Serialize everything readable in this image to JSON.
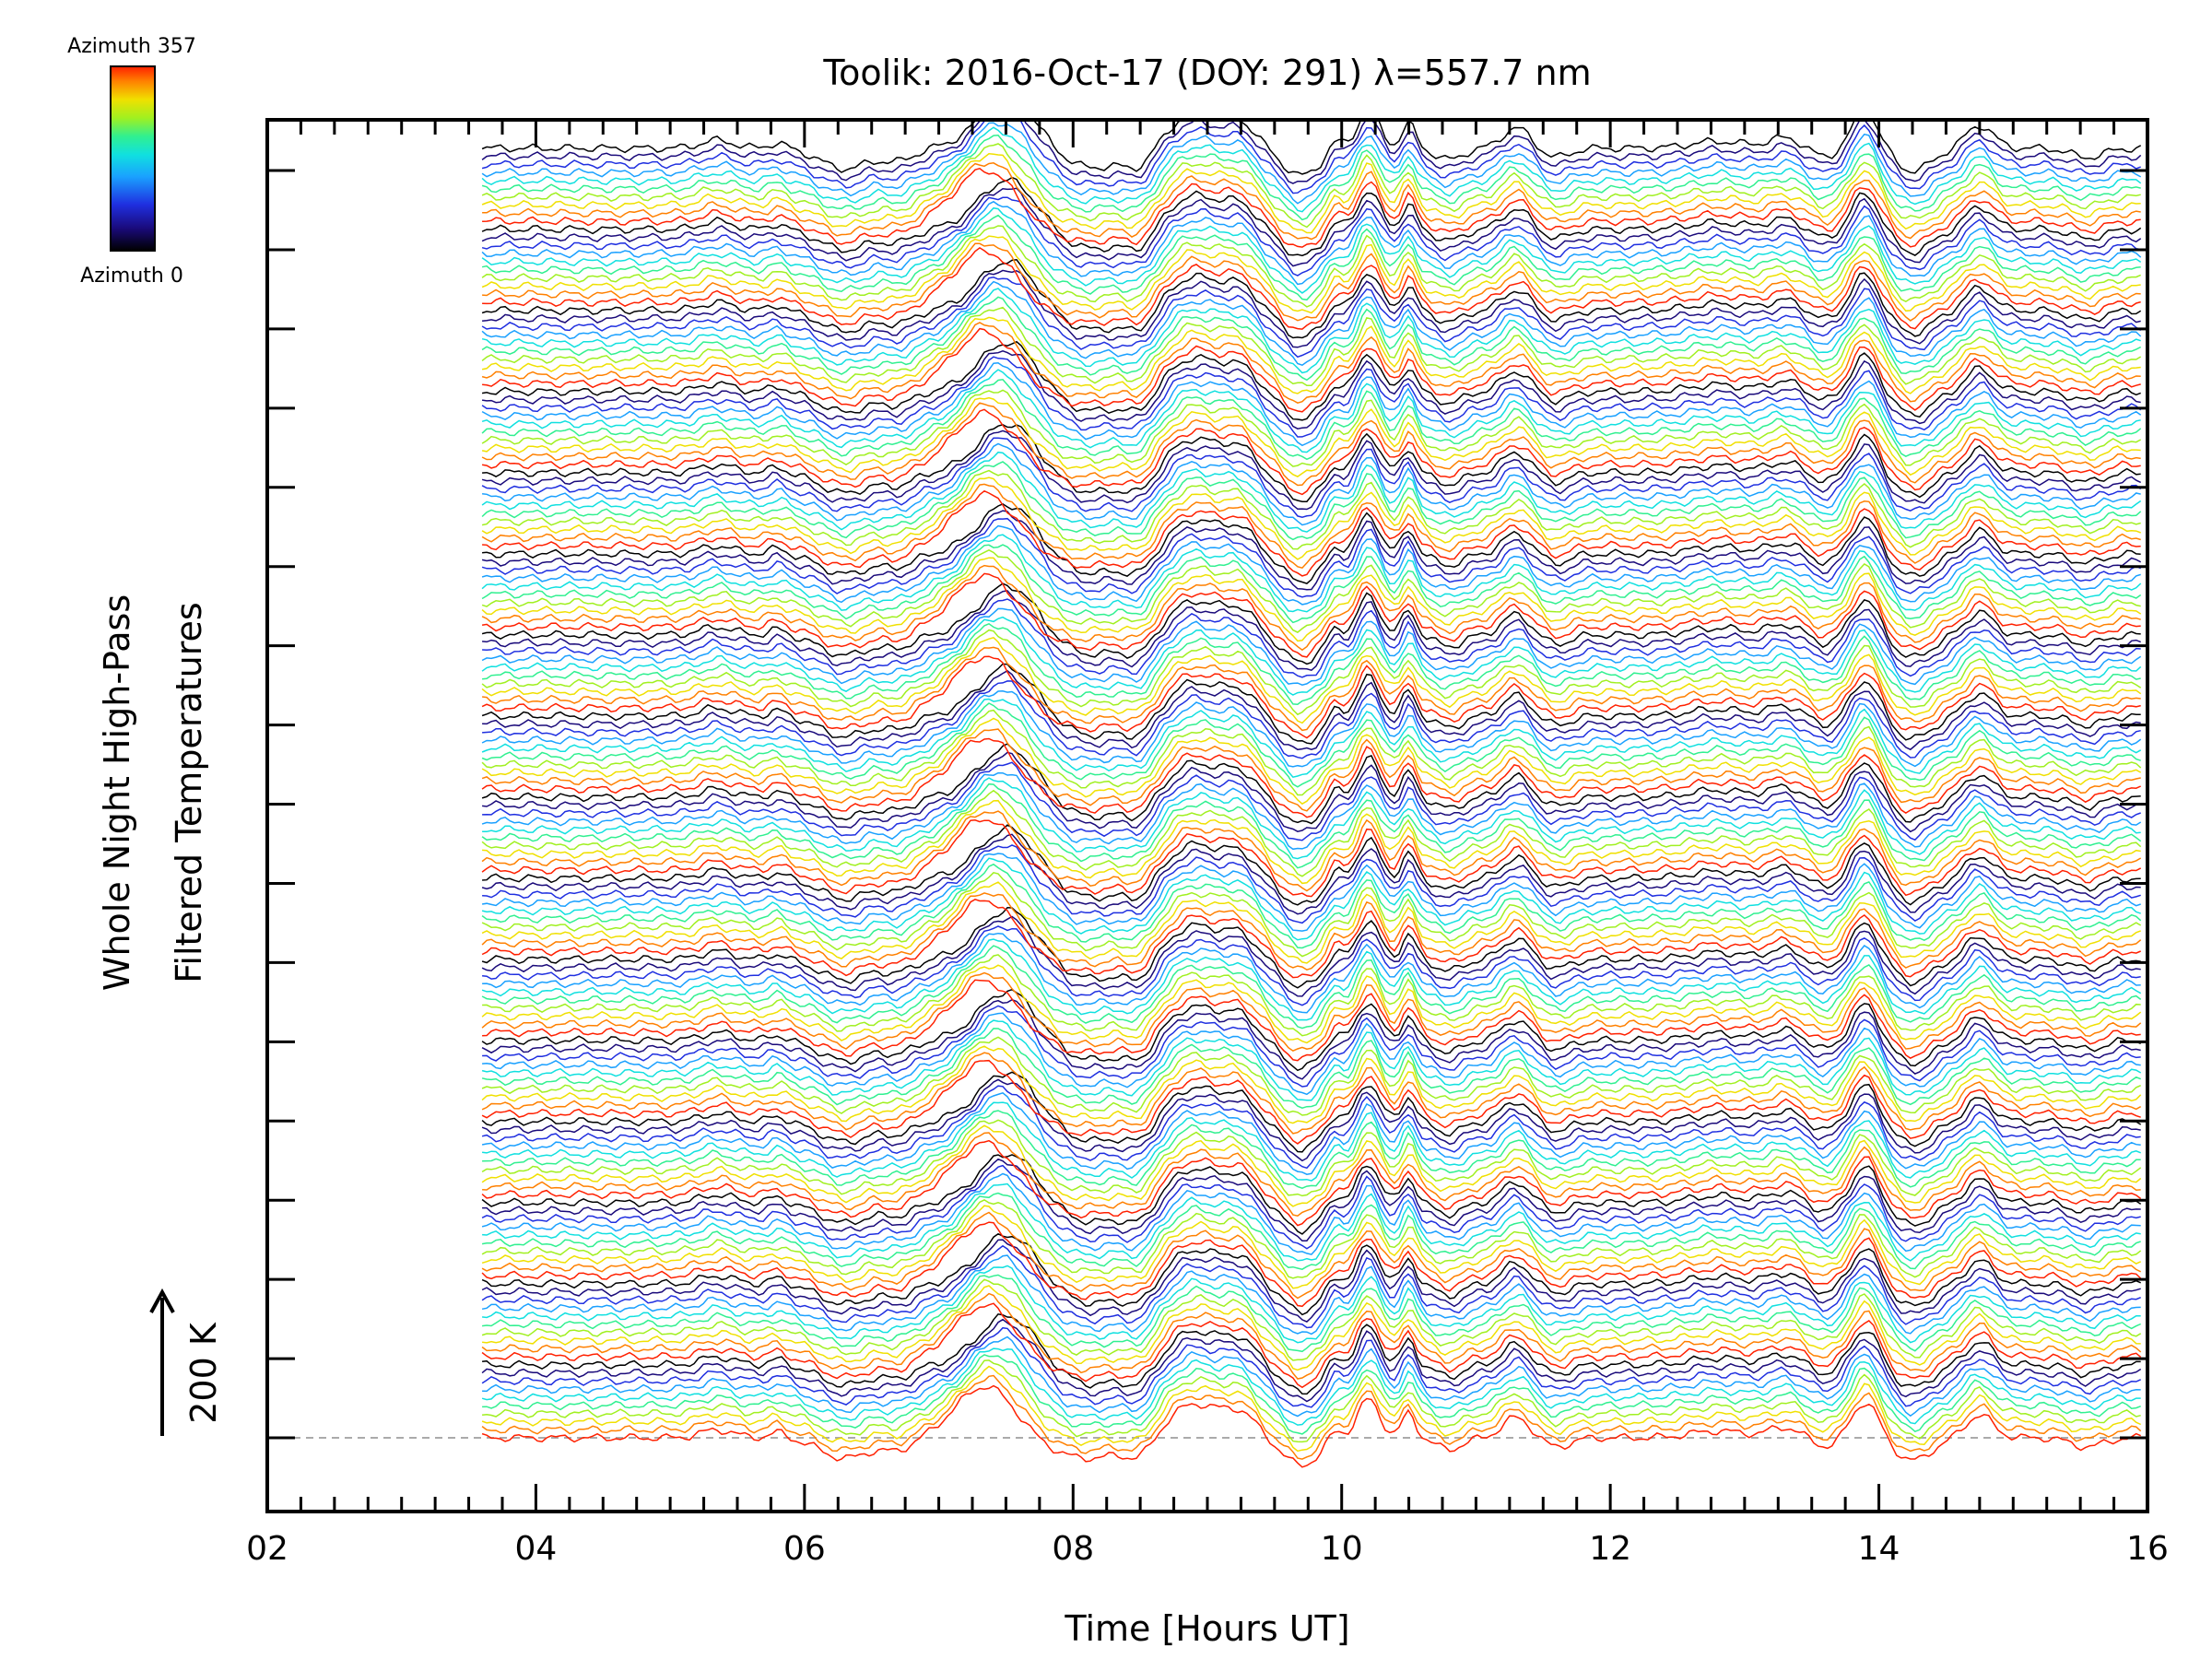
{
  "chart_data": {
    "type": "line",
    "title": "Toolik: 2016-Oct-17 (DOY: 291) λ=557.7 nm",
    "xlabel": "Time [Hours UT]",
    "ylabel_line1": "Whole Night High-Pass",
    "ylabel_line2": "Filtered Temperatures",
    "scale_label": "200 K",
    "xlim": [
      2,
      16
    ],
    "x_ticks": [
      "02",
      "04",
      "06",
      "08",
      "10",
      "12",
      "14",
      "16"
    ],
    "x_tick_values": [
      2,
      4,
      6,
      8,
      10,
      12,
      14,
      16
    ],
    "y_major_ticks": 17,
    "grid": false,
    "legend": {
      "placement": "top-left",
      "top_label": "Azimuth 357",
      "bottom_label": "Azimuth 0",
      "azimuth_range": [
        0,
        357
      ]
    },
    "series_info": {
      "count": 160,
      "time_start": 3.6,
      "time_end": 15.95,
      "offset_per_series_K": 9.5,
      "azimuth_cycle_lines": 10,
      "amplitude_K": 28
    },
    "common_features": [
      {
        "t": 5.35,
        "amp": 0.35,
        "w": 0.12
      },
      {
        "t": 5.8,
        "amp": 0.25,
        "w": 0.06
      },
      {
        "t": 6.3,
        "amp": -0.9,
        "w": 0.18
      },
      {
        "t": 6.7,
        "amp": -0.5,
        "w": 0.12
      },
      {
        "t": 7.35,
        "amp": 2.3,
        "w": 0.22
      },
      {
        "t": 8.1,
        "amp": -0.9,
        "w": 0.3
      },
      {
        "t": 8.5,
        "amp": -0.6,
        "w": 0.1
      },
      {
        "t": 8.9,
        "amp": 1.5,
        "w": 0.2
      },
      {
        "t": 9.25,
        "amp": 0.9,
        "w": 0.12
      },
      {
        "t": 9.7,
        "amp": -1.2,
        "w": 0.14
      },
      {
        "t": 9.95,
        "amp": 0.5,
        "w": 0.05
      },
      {
        "t": 10.2,
        "amp": 1.7,
        "w": 0.08
      },
      {
        "t": 10.5,
        "amp": 1.1,
        "w": 0.05
      },
      {
        "t": 10.8,
        "amp": -0.5,
        "w": 0.1
      },
      {
        "t": 11.3,
        "amp": 0.9,
        "w": 0.1
      },
      {
        "t": 11.6,
        "amp": -0.4,
        "w": 0.1
      },
      {
        "t": 12.8,
        "amp": 0.3,
        "w": 0.2
      },
      {
        "t": 13.3,
        "amp": 0.45,
        "w": 0.12
      },
      {
        "t": 13.6,
        "amp": -0.4,
        "w": 0.1
      },
      {
        "t": 13.9,
        "amp": 1.6,
        "w": 0.1
      },
      {
        "t": 14.25,
        "amp": -1.0,
        "w": 0.14
      },
      {
        "t": 14.75,
        "amp": 1.0,
        "w": 0.1
      },
      {
        "t": 15.55,
        "amp": -0.4,
        "w": 0.12
      }
    ],
    "colors": {
      "axis": "#000000",
      "baseline": "#aaaaaa",
      "colormap": [
        "#000000",
        "#1a0a7a",
        "#1f2fe0",
        "#1aa0ff",
        "#10e0e0",
        "#30f090",
        "#a0f020",
        "#f0e000",
        "#ff8000",
        "#ff2000"
      ]
    }
  }
}
